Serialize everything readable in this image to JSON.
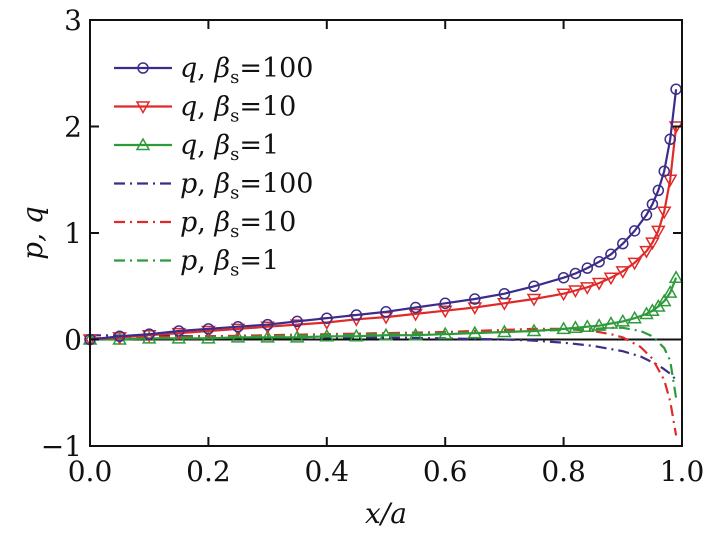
{
  "chart_data": {
    "type": "line",
    "title": "",
    "xlabel": "x/a",
    "ylabel": "p, q",
    "xlim": [
      0.0,
      1.0
    ],
    "ylim": [
      -1,
      3
    ],
    "xticks": [
      0.0,
      0.2,
      0.4,
      0.6,
      0.8,
      1.0
    ],
    "xtick_labels": [
      "0.0",
      "0.2",
      "0.4",
      "0.6",
      "0.8",
      "1.0"
    ],
    "yticks": [
      -1,
      0,
      1,
      2,
      3
    ],
    "ytick_labels": [
      "−1",
      "0",
      "1",
      "2",
      "3"
    ],
    "legend_position": "top-left",
    "series": [
      {
        "name": "q, βs=100",
        "var": "q",
        "sym": "β",
        "sub": "s",
        "val": "100",
        "color": "#3c2d8a",
        "style": "solid",
        "marker": "circle",
        "x": [
          0.0,
          0.05,
          0.1,
          0.15,
          0.2,
          0.25,
          0.3,
          0.35,
          0.4,
          0.45,
          0.5,
          0.55,
          0.6,
          0.65,
          0.7,
          0.75,
          0.8,
          0.82,
          0.84,
          0.86,
          0.88,
          0.9,
          0.92,
          0.94,
          0.95,
          0.96,
          0.97,
          0.98,
          0.99
        ],
        "y": [
          0.0,
          0.03,
          0.05,
          0.08,
          0.1,
          0.12,
          0.14,
          0.17,
          0.2,
          0.23,
          0.26,
          0.3,
          0.34,
          0.38,
          0.43,
          0.5,
          0.58,
          0.62,
          0.67,
          0.73,
          0.8,
          0.9,
          1.02,
          1.17,
          1.27,
          1.4,
          1.58,
          1.88,
          2.35
        ]
      },
      {
        "name": "q, βs=10",
        "var": "q",
        "sym": "β",
        "sub": "s",
        "val": "10",
        "color": "#e02a2a",
        "style": "solid",
        "marker": "triangle-down",
        "x": [
          0.0,
          0.05,
          0.1,
          0.15,
          0.2,
          0.25,
          0.3,
          0.35,
          0.4,
          0.45,
          0.5,
          0.55,
          0.6,
          0.65,
          0.7,
          0.75,
          0.8,
          0.82,
          0.84,
          0.86,
          0.88,
          0.9,
          0.92,
          0.94,
          0.95,
          0.96,
          0.97,
          0.98,
          0.99
        ],
        "y": [
          0.0,
          0.02,
          0.04,
          0.06,
          0.08,
          0.1,
          0.12,
          0.14,
          0.16,
          0.19,
          0.21,
          0.24,
          0.27,
          0.3,
          0.34,
          0.38,
          0.43,
          0.46,
          0.49,
          0.53,
          0.58,
          0.64,
          0.72,
          0.83,
          0.91,
          1.02,
          1.2,
          1.5,
          2.0
        ]
      },
      {
        "name": "q, βs=1",
        "var": "q",
        "sym": "β",
        "sub": "s",
        "val": "1",
        "color": "#2e9a3a",
        "style": "solid",
        "marker": "triangle-up",
        "x": [
          0.0,
          0.05,
          0.1,
          0.15,
          0.2,
          0.25,
          0.3,
          0.35,
          0.4,
          0.45,
          0.5,
          0.55,
          0.6,
          0.65,
          0.7,
          0.75,
          0.8,
          0.82,
          0.84,
          0.86,
          0.88,
          0.9,
          0.92,
          0.94,
          0.95,
          0.96,
          0.97,
          0.98,
          0.99
        ],
        "y": [
          0.0,
          0.0,
          0.01,
          0.01,
          0.01,
          0.02,
          0.02,
          0.02,
          0.03,
          0.03,
          0.04,
          0.04,
          0.05,
          0.06,
          0.07,
          0.08,
          0.1,
          0.11,
          0.12,
          0.13,
          0.15,
          0.17,
          0.2,
          0.24,
          0.27,
          0.31,
          0.36,
          0.44,
          0.58
        ]
      },
      {
        "name": "p, βs=100",
        "var": "p",
        "sym": "β",
        "sub": "s",
        "val": "100",
        "color": "#3c2d8a",
        "style": "dashdot",
        "marker": "none",
        "x": [
          0.0,
          0.1,
          0.2,
          0.3,
          0.4,
          0.5,
          0.6,
          0.7,
          0.75,
          0.8,
          0.85,
          0.9,
          0.93,
          0.96,
          0.98,
          0.99
        ],
        "y": [
          0.04,
          0.035,
          0.03,
          0.03,
          0.02,
          0.02,
          0.01,
          0.0,
          -0.01,
          -0.03,
          -0.06,
          -0.11,
          -0.16,
          -0.24,
          -0.32,
          -0.38
        ]
      },
      {
        "name": "p, βs=10",
        "var": "p",
        "sym": "β",
        "sub": "s",
        "val": "10",
        "color": "#e02a2a",
        "style": "dashdot",
        "marker": "none",
        "x": [
          0.0,
          0.1,
          0.2,
          0.3,
          0.4,
          0.5,
          0.6,
          0.7,
          0.75,
          0.8,
          0.85,
          0.88,
          0.9,
          0.93,
          0.95,
          0.97,
          0.98,
          0.99
        ],
        "y": [
          0.01,
          0.02,
          0.03,
          0.04,
          0.05,
          0.06,
          0.07,
          0.09,
          0.1,
          0.1,
          0.08,
          0.05,
          0.02,
          -0.07,
          -0.18,
          -0.38,
          -0.58,
          -0.9
        ]
      },
      {
        "name": "p, βs=1",
        "var": "p",
        "sym": "β",
        "sub": "s",
        "val": "1",
        "color": "#2e9a3a",
        "style": "dashdot",
        "marker": "none",
        "x": [
          0.0,
          0.1,
          0.2,
          0.3,
          0.4,
          0.5,
          0.6,
          0.7,
          0.8,
          0.85,
          0.88,
          0.9,
          0.93,
          0.95,
          0.97,
          0.98,
          0.99
        ],
        "y": [
          0.0,
          0.01,
          0.02,
          0.03,
          0.04,
          0.05,
          0.06,
          0.07,
          0.09,
          0.1,
          0.11,
          0.11,
          0.08,
          0.03,
          -0.08,
          -0.2,
          -0.55
        ]
      }
    ]
  }
}
